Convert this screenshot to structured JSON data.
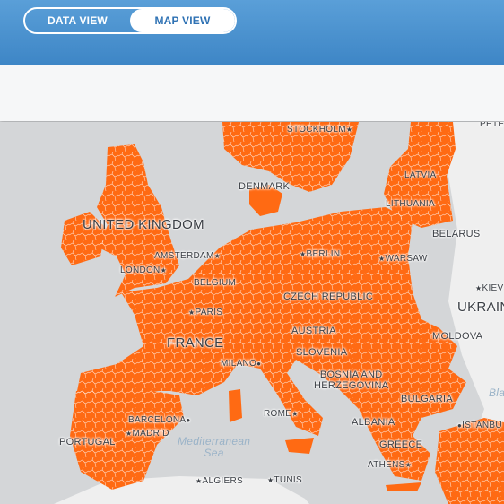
{
  "view_toggle": {
    "data_view": "DATA VIEW",
    "map_view": "MAP VIEW",
    "selected": "MAP VIEW"
  },
  "colors": {
    "header": "#4a92d0",
    "region_fill": "#ff6a13",
    "water": "#d4d6d8",
    "land_other": "#eeeeee"
  },
  "map": {
    "labels": {
      "stockholm": "STOCKHOLM",
      "pete": "PETE",
      "latvia": "LATVIA",
      "denmark": "DENMARK",
      "lithuania": "LITHUANIA",
      "united_kingdom": "UNITED KINGDOM",
      "belarus": "BELARUS",
      "amsterdam": "AMSTERDAM",
      "berlin": "BERLIN",
      "warsaw": "WARSAW",
      "london": "LONDON",
      "belgium": "BELGIUM",
      "kiev": "KIEV",
      "czech_republic": "CZECH REPUBLIC",
      "ukraine": "UKRAIN",
      "paris": "PARIS",
      "austria": "AUSTRIA",
      "moldova": "MOLDOVA",
      "france": "FRANCE",
      "slovenia": "SLOVENIA",
      "milano": "MILANO",
      "bosnia": "BOSNIA AND\nHERZEGOVINA",
      "black_sea": "Bla",
      "bulgaria": "BULGARIA",
      "rome": "ROME",
      "barcelona": "BARCELONA",
      "albania": "ALBANIA",
      "istanbul": "ISTANBU",
      "madrid": "MADRID",
      "portugal": "PORTUGAL",
      "mediterranean": "Mediterranean\nSea",
      "greece": "GREECE",
      "athens": "ATHENS",
      "algiers": "ALGIERS",
      "tunis": "TUNIS"
    }
  }
}
